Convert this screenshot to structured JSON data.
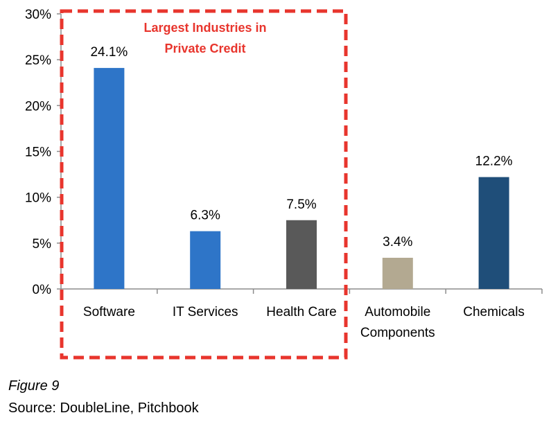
{
  "chart_data": {
    "type": "bar",
    "categories": [
      "Software",
      "IT Services",
      "Health Care",
      "Automobile Components",
      "Chemicals"
    ],
    "category_lines": [
      [
        "Software"
      ],
      [
        "IT Services"
      ],
      [
        "Health Care"
      ],
      [
        "Automobile",
        "Components"
      ],
      [
        "Chemicals"
      ]
    ],
    "values": [
      24.1,
      6.3,
      7.5,
      3.4,
      12.2
    ],
    "data_labels": [
      "24.1%",
      "6.3%",
      "7.5%",
      "3.4%",
      "12.2%"
    ],
    "colors": [
      "#2e75c8",
      "#2e75c8",
      "#595959",
      "#b3a991",
      "#1f4e79"
    ],
    "ylim": [
      0,
      30
    ],
    "yticks": [
      0,
      5,
      10,
      15,
      20,
      25,
      30
    ],
    "ytick_labels": [
      "0%",
      "5%",
      "10%",
      "15%",
      "20%",
      "25%",
      "30%"
    ],
    "title": "",
    "xlabel": "",
    "ylabel": "",
    "grid": false,
    "annotation": {
      "lines": [
        "Largest Industries in",
        "Private Credit"
      ],
      "color": "#e8352d",
      "highlights": [
        "Software",
        "IT Services",
        "Health Care"
      ]
    }
  },
  "caption": {
    "figure": "Figure 9",
    "source": "Source: DoubleLine, Pitchbook"
  }
}
